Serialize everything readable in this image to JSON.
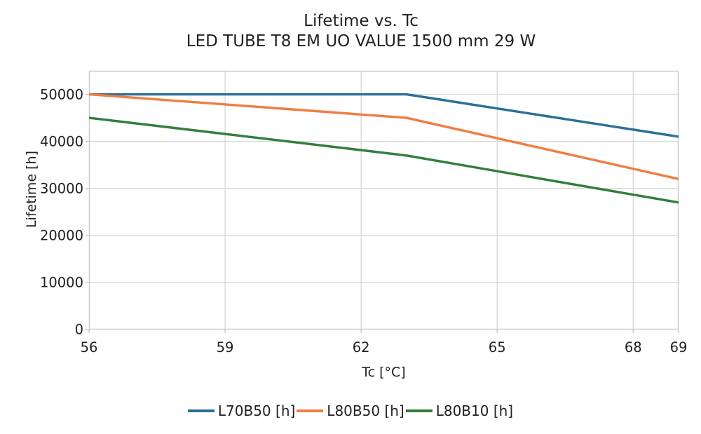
{
  "title": "Lifetime vs. Tc",
  "subtitle": "LED TUBE T8 EM UO VALUE 1500 mm 29 W",
  "chart_data": {
    "type": "line",
    "title": "Lifetime vs. Tc",
    "subtitle": "LED TUBE T8 EM UO VALUE 1500 mm 29 W",
    "xlabel": "Tc [°C]",
    "ylabel": "Lifetime [h]",
    "xlim": [
      56,
      69
    ],
    "ylim": [
      0,
      55000
    ],
    "xticks": [
      56,
      59,
      62,
      65,
      68,
      69
    ],
    "yticks": [
      0,
      10000,
      20000,
      30000,
      40000,
      50000
    ],
    "grid": true,
    "legend_position": "bottom",
    "x": [
      56,
      63,
      69
    ],
    "series": [
      {
        "name": "L70B50 [h]",
        "color": "#2a6f96",
        "values": [
          50000,
          50000,
          41000
        ]
      },
      {
        "name": "L80B50 [h]",
        "color": "#f07d42",
        "values": [
          50000,
          45000,
          32000
        ]
      },
      {
        "name": "L80B10 [h]",
        "color": "#327e3c",
        "values": [
          45000,
          37000,
          27000
        ]
      }
    ]
  },
  "colors": {
    "background": "#ffffff",
    "grid": "#d9d9d9",
    "border": "#c9c9c9",
    "text": "#212121"
  }
}
